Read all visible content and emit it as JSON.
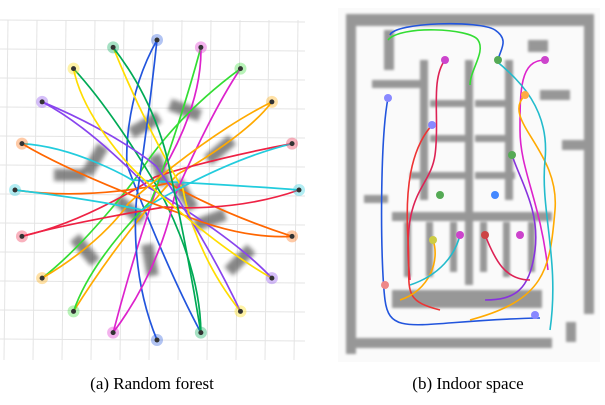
{
  "panels": [
    {
      "caption": "(a) Random forest"
    },
    {
      "caption": "(b) Indoor space"
    }
  ]
}
